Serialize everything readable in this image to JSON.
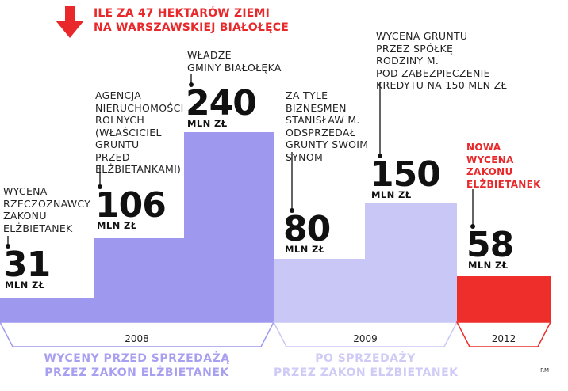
{
  "title": {
    "line1": "ILE ZA 47 HEKTARÓW ZIEMI",
    "line2": "NA WARSZAWSKIEJ BIAŁOŁĘCE",
    "arrow_icon": "down-arrow-icon"
  },
  "colors": {
    "before": "#9e99ef",
    "after": "#c9c7f6",
    "red": "#ee2e2b",
    "leader": "#111111",
    "before_text": "#a79ff0",
    "after_text": "#cfcaf6"
  },
  "chart_data": {
    "type": "bar",
    "title": "ILE ZA 47 HEKTARÓW ZIEMI NA WARSZAWSKIEJ BIAŁOŁĘCE",
    "unit": "MLN ZŁ",
    "categories": [
      "WYCENA RZECZOZNAWCY ZAKONU ELŻBIETANEK",
      "AGENCJA NIERUCHOMOŚCI ROLNYCH (WŁAŚCICIEL GRUNTU PRZED ELŻBIETANKAMI)",
      "WŁADZE GMINY BIAŁOŁĘKA",
      "ZA TYLE BIZNESMEN STANISŁAW M. ODSPRZEDAŁ GRUNTY SWOIM SYNOM",
      "WYCENA GRUNTU PRZEZ SPÓŁKĘ RODZINY M. POD ZABEZPIECZENIE KREDYTU NA 150 MLN ZŁ",
      "NOWA WYCENA ZAKONU ELŻBIETANEK"
    ],
    "values": [
      31,
      106,
      240,
      80,
      150,
      58
    ],
    "value_labels": [
      "31",
      "106",
      "240",
      "80",
      "150",
      "58"
    ],
    "periods": [
      "2008",
      "2008",
      "2008",
      "2009",
      "2009",
      "2012"
    ],
    "groups": [
      "WYCENY PRZED SPRZEDAŻĄ PRZEZ ZAKON ELŻBIETANEK",
      "WYCENY PRZED SPRZEDAŻĄ PRZEZ ZAKON ELŻBIETANEK",
      "WYCENY PRZED SPRZEDAŻĄ PRZEZ ZAKON ELŻBIETANEK",
      "PO SPRZEDAŻY PRZEZ ZAKON ELŻBIETANEK",
      "PO SPRZEDAŻY PRZEZ ZAKON ELŻBIETANEK",
      ""
    ],
    "ylim": [
      0,
      240
    ],
    "grid": false,
    "legend": "none"
  },
  "annotations": [
    "WYCENA\nRZECZOZNAWCY\nZAKONU\nELŻBIETANEK",
    "AGENCJA\nNIERUCHOMOŚCI\nROLNYCH\n(WŁAŚCICIEL\nGRUNTU\nPRZED\nELŻBIETANKAMI)",
    "WŁADZE\nGMINY BIAŁOŁĘKA",
    "ZA TYLE\nBIZNESMEN\nSTANISŁAW M.\nODSPRZEDAŁ\nGRUNTY SWOIM\nSYNOM",
    "WYCENA GRUNTU\nPRZEZ SPÓŁKĘ\nRODZINY M.\nPOD ZABEZPIECZENIE\nKREDYTU NA 150 MLN ZŁ",
    "NOWA\nWYCENA\nZAKONU\nELŻBIETANEK"
  ],
  "period_labels": [
    "2008",
    "2009",
    "2012"
  ],
  "group_labels": {
    "before": "WYCENY PRZED SPRZEDAŻĄ\nPRZEZ ZAKON ELŻBIETANEK",
    "after": "PO SPRZEDAŻY\nPRZEZ ZAKON ELŻBIETANEK"
  },
  "credit": "RM"
}
